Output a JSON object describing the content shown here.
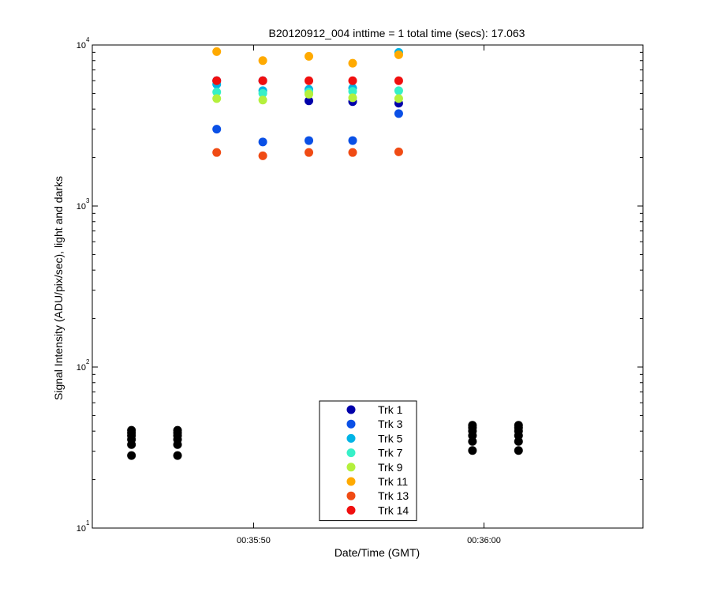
{
  "chart_data": {
    "type": "scatter",
    "title": "B20120912_004 inttime = 1 total time (secs): 17.063",
    "xlabel": "Date/Time (GMT)",
    "ylabel": "Signal Intensity (ADU/pix/sec), light and darks",
    "yscale": "log",
    "ylim": [
      10,
      10000
    ],
    "xlim": [
      "00:35:43.0",
      "00:36:06.9"
    ],
    "x_ticks": [
      "00:35:50",
      "00:36:00"
    ],
    "y_ticks": [
      {
        "base": "10",
        "exp": "1",
        "value": 10
      },
      {
        "base": "10",
        "exp": "2",
        "value": 100
      },
      {
        "base": "10",
        "exp": "3",
        "value": 1000
      },
      {
        "base": "10",
        "exp": "4",
        "value": 10000
      }
    ],
    "grid": false,
    "legend_position": "bottom-center",
    "series": [
      {
        "name": "Trk 1",
        "color": "#0000aa",
        "x": [
          "00:35:48.4",
          "00:35:50.4",
          "00:35:52.4",
          "00:35:54.3",
          "00:35:56.3"
        ],
        "y": [
          6000,
          6000,
          4500,
          4450,
          4350
        ]
      },
      {
        "name": "Trk 3",
        "color": "#0a50e6",
        "x": [
          "00:35:48.4",
          "00:35:50.4",
          "00:35:52.4",
          "00:35:54.3",
          "00:35:56.3"
        ],
        "y": [
          3000,
          2500,
          2550,
          2550,
          3750
        ]
      },
      {
        "name": "Trk 5",
        "color": "#00b4e6",
        "x": [
          "00:35:48.4",
          "00:35:50.4",
          "00:35:52.4",
          "00:35:54.3",
          "00:35:56.3"
        ],
        "y": [
          5700,
          5200,
          5300,
          5400,
          9000
        ]
      },
      {
        "name": "Trk 7",
        "color": "#37f0c8",
        "x": [
          "00:35:48.4",
          "00:35:50.4",
          "00:35:52.4",
          "00:35:54.3",
          "00:35:56.3"
        ],
        "y": [
          5100,
          5000,
          5100,
          5150,
          5200
        ]
      },
      {
        "name": "Trk 9",
        "color": "#b4f03c",
        "x": [
          "00:35:48.4",
          "00:35:50.4",
          "00:35:52.4",
          "00:35:54.3",
          "00:35:56.3"
        ],
        "y": [
          4650,
          4550,
          4950,
          4700,
          4650
        ]
      },
      {
        "name": "Trk 11",
        "color": "#ffaa00",
        "x": [
          "00:35:48.4",
          "00:35:50.4",
          "00:35:52.4",
          "00:35:54.3",
          "00:35:56.3"
        ],
        "y": [
          9100,
          8000,
          8500,
          7700,
          8700
        ]
      },
      {
        "name": "Trk 13",
        "color": "#f04b14",
        "x": [
          "00:35:48.4",
          "00:35:50.4",
          "00:35:52.4",
          "00:35:54.3",
          "00:35:56.3"
        ],
        "y": [
          2150,
          2050,
          2150,
          2150,
          2170
        ]
      },
      {
        "name": "Trk 14",
        "color": "#f00f0f",
        "x": [
          "00:35:48.4",
          "00:35:50.4",
          "00:35:52.4",
          "00:35:54.3",
          "00:35:56.3"
        ],
        "y": [
          6000,
          6000,
          6000,
          6000,
          6000
        ]
      },
      {
        "name": "",
        "color": "#000000",
        "x": [
          "00:35:44.7",
          "00:35:44.7",
          "00:35:44.7",
          "00:35:44.7",
          "00:35:44.7",
          "00:35:44.7",
          "00:35:46.7",
          "00:35:46.7",
          "00:35:46.7",
          "00:35:46.7",
          "00:35:46.7",
          "00:35:46.7",
          "00:35:59.5",
          "00:35:59.5",
          "00:35:59.5",
          "00:35:59.5",
          "00:35:59.5",
          "00:35:59.5",
          "00:36:01.5",
          "00:36:01.5",
          "00:36:01.5",
          "00:36:01.5",
          "00:36:01.5",
          "00:36:01.5"
        ],
        "y": [
          28.2,
          33.0,
          35.5,
          37.5,
          39.0,
          40.5,
          28.2,
          33.0,
          35.5,
          37.5,
          39.0,
          40.5,
          30.3,
          34.5,
          37.5,
          40.0,
          42.0,
          43.5,
          30.3,
          34.5,
          37.5,
          40.0,
          42.0,
          43.5
        ]
      }
    ]
  }
}
